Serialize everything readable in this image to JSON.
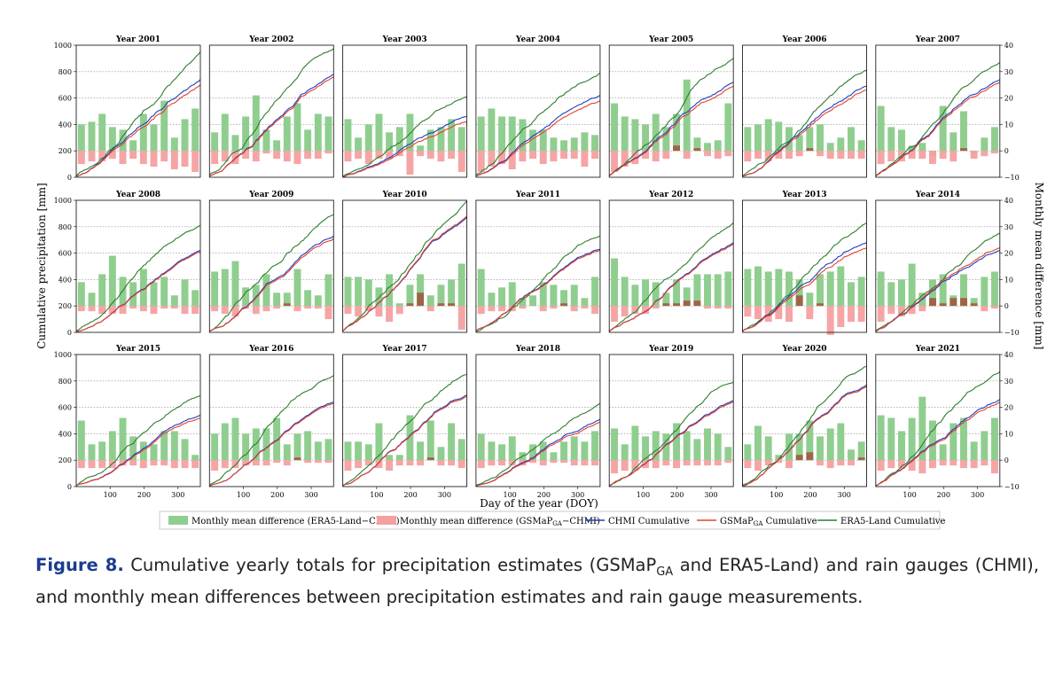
{
  "figure": {
    "label": "Figure 8.",
    "caption_parts": [
      " Cumulative yearly totals for precipitation estimates (GSMaP",
      "GA",
      " and ERA5-Land) and rain gauges (CHMI), and monthly mean differences between precipitation estimates and rain gauge measurements."
    ]
  },
  "colors": {
    "era5_bar": "#8fce8f",
    "gsmap_bar": "#f4a0a0",
    "gsmap_bar_dark": "#a0523a",
    "chmi_line": "#1f3fbf",
    "gsmap_line": "#e8402a",
    "era5_line": "#2e7d2e"
  },
  "chart_data": {
    "type": "bar+line",
    "ylabel_left": "Cumulative precipitation [mm]",
    "ylabel_right": "Monthly mean difference [mm]",
    "xlabel": "Day of the year (DOY)",
    "ylim_left": [
      0,
      1000
    ],
    "ylim_right": [
      -10,
      40
    ],
    "xlim": [
      0,
      366
    ],
    "left_ticks": [
      "0",
      "200",
      "400",
      "600",
      "800",
      "1000"
    ],
    "right_ticks": [
      "−10",
      "0",
      "10",
      "20",
      "30",
      "40"
    ],
    "x_ticks": [
      "100",
      "200",
      "300"
    ],
    "legend": [
      "Monthly mean difference (ERA5-Land−CHMI)",
      "Monthly mean difference (GSMaP",
      "GA",
      "−CHMI)",
      "CHMI Cumulative",
      "GSMaP",
      "GA",
      " Cumulative",
      "ERA5-Land Cumulative"
    ],
    "panels": [
      {
        "year": "Year 2001",
        "era5_diff": [
          10,
          11,
          14,
          9,
          8,
          4,
          14,
          10,
          19,
          5,
          12,
          16
        ],
        "gsmap_diff": [
          -5,
          -4,
          -4,
          -3,
          -5,
          -3,
          -5,
          -6,
          -4,
          -7,
          -6,
          -8
        ],
        "chmi_total": 740,
        "gsmap_total": 700,
        "era5_total": 950
      },
      {
        "year": "Year 2002",
        "era5_diff": [
          7,
          14,
          6,
          13,
          21,
          8,
          4,
          13,
          18,
          8,
          14,
          13
        ],
        "gsmap_diff": [
          -5,
          -4,
          -5,
          -3,
          -4,
          -1,
          -3,
          -4,
          -5,
          -3,
          -3,
          -1
        ],
        "chmi_total": 780,
        "gsmap_total": 760,
        "era5_total": 975
      },
      {
        "year": "Year 2003",
        "era5_diff": [
          12,
          5,
          10,
          14,
          7,
          9,
          14,
          2,
          8,
          9,
          12,
          9
        ],
        "gsmap_diff": [
          -4,
          -3,
          -5,
          -3,
          -3,
          -2,
          -9,
          -2,
          -3,
          -4,
          -3,
          -8
        ],
        "chmi_total": 460,
        "gsmap_total": 420,
        "era5_total": 610
      },
      {
        "year": "Year 2004",
        "era5_diff": [
          13,
          16,
          13,
          13,
          12,
          8,
          8,
          5,
          4,
          5,
          7,
          6
        ],
        "gsmap_diff": [
          -8,
          -6,
          -5,
          -7,
          -4,
          -3,
          -5,
          -4,
          -3,
          -3,
          -6,
          -3
        ],
        "chmi_total": 620,
        "gsmap_total": 580,
        "era5_total": 790
      },
      {
        "year": "Year 2005",
        "era5_diff": [
          18,
          13,
          12,
          10,
          14,
          9,
          14,
          27,
          5,
          3,
          4,
          18
        ],
        "gsmap_diff": [
          -8,
          -6,
          -5,
          -3,
          -4,
          -3,
          2,
          -3,
          1,
          -2,
          -3,
          -2
        ],
        "chmi_total": 720,
        "gsmap_total": 690,
        "era5_total": 900
      },
      {
        "year": "Year 2006",
        "era5_diff": [
          9,
          10,
          12,
          11,
          9,
          6,
          9,
          10,
          3,
          5,
          9,
          4
        ],
        "gsmap_diff": [
          -4,
          -3,
          -4,
          -3,
          -3,
          -2,
          1,
          -2,
          -3,
          -3,
          -3,
          -3
        ],
        "chmi_total": 690,
        "gsmap_total": 660,
        "era5_total": 810
      },
      {
        "year": "Year 2007",
        "era5_diff": [
          17,
          9,
          8,
          2,
          3,
          -2,
          17,
          7,
          15,
          -1,
          5,
          9
        ],
        "gsmap_diff": [
          -5,
          -4,
          -4,
          -3,
          -3,
          -5,
          -3,
          -4,
          1,
          -3,
          -2,
          -1
        ],
        "chmi_total": 740,
        "gsmap_total": 720,
        "era5_total": 870
      },
      {
        "year": "Year 2008",
        "era5_diff": [
          9,
          5,
          12,
          19,
          11,
          9,
          14,
          9,
          11,
          4,
          10,
          6
        ],
        "gsmap_diff": [
          -2,
          -2,
          -3,
          -3,
          -3,
          -1,
          -2,
          -3,
          -1,
          -1,
          -3,
          -3
        ],
        "chmi_total": 620,
        "gsmap_total": 610,
        "era5_total": 810
      },
      {
        "year": "Year 2009",
        "era5_diff": [
          13,
          14,
          17,
          7,
          8,
          12,
          5,
          5,
          14,
          6,
          4,
          12
        ],
        "gsmap_diff": [
          -2,
          -3,
          -4,
          -1,
          -3,
          -2,
          -1,
          1,
          -2,
          -1,
          -1,
          -5
        ],
        "chmi_total": 730,
        "gsmap_total": 710,
        "era5_total": 890
      },
      {
        "year": "Year 2010",
        "era5_diff": [
          11,
          11,
          10,
          7,
          12,
          1,
          8,
          12,
          4,
          8,
          10,
          16
        ],
        "gsmap_diff": [
          -3,
          -4,
          -2,
          -4,
          -6,
          -3,
          1,
          5,
          -2,
          1,
          1,
          -9
        ],
        "chmi_total": 870,
        "gsmap_total": 880,
        "era5_total": 995
      },
      {
        "year": "Year 2011",
        "era5_diff": [
          14,
          5,
          7,
          9,
          3,
          4,
          9,
          8,
          6,
          8,
          3,
          11
        ],
        "gsmap_diff": [
          -3,
          -2,
          -2,
          -2,
          -1,
          0,
          -2,
          -1,
          1,
          -2,
          -1,
          -3
        ],
        "chmi_total": 630,
        "gsmap_total": 620,
        "era5_total": 730
      },
      {
        "year": "Year 2012",
        "era5_diff": [
          18,
          11,
          8,
          10,
          9,
          5,
          10,
          7,
          12,
          12,
          12,
          13
        ],
        "gsmap_diff": [
          -6,
          -4,
          -3,
          -3,
          -1,
          1,
          1,
          2,
          2,
          -1,
          -1,
          -1
        ],
        "chmi_total": 680,
        "gsmap_total": 670,
        "era5_total": 830
      },
      {
        "year": "Year 2013",
        "era5_diff": [
          14,
          15,
          13,
          14,
          13,
          10,
          5,
          12,
          13,
          15,
          9,
          11
        ],
        "gsmap_diff": [
          -4,
          -5,
          -6,
          -5,
          -6,
          4,
          -5,
          1,
          -11,
          -8,
          -6,
          -6
        ],
        "chmi_total": 680,
        "gsmap_total": 640,
        "era5_total": 830
      },
      {
        "year": "Year 2014",
        "era5_diff": [
          13,
          9,
          10,
          16,
          5,
          10,
          12,
          4,
          12,
          3,
          11,
          13
        ],
        "gsmap_diff": [
          -6,
          -3,
          -4,
          -3,
          -2,
          3,
          1,
          3,
          3,
          1,
          -2,
          -1
        ],
        "chmi_total": 620,
        "gsmap_total": 640,
        "era5_total": 750
      },
      {
        "year": "Year 2015",
        "era5_diff": [
          15,
          6,
          7,
          11,
          16,
          9,
          7,
          6,
          11,
          11,
          8,
          2
        ],
        "gsmap_diff": [
          -3,
          -3,
          -3,
          -3,
          -2,
          -2,
          -3,
          -2,
          -2,
          -3,
          -3,
          -3
        ],
        "chmi_total": 540,
        "gsmap_total": 520,
        "era5_total": 690
      },
      {
        "year": "Year 2016",
        "era5_diff": [
          10,
          14,
          16,
          10,
          12,
          12,
          16,
          6,
          10,
          11,
          7,
          8
        ],
        "gsmap_diff": [
          -4,
          -3,
          -3,
          -2,
          -2,
          -2,
          -1,
          -2,
          1,
          -1,
          -1,
          -1
        ],
        "chmi_total": 640,
        "gsmap_total": 630,
        "era5_total": 840
      },
      {
        "year": "Year 2017",
        "era5_diff": [
          7,
          7,
          6,
          14,
          2,
          2,
          17,
          7,
          15,
          5,
          14,
          8
        ],
        "gsmap_diff": [
          -4,
          -3,
          -2,
          -3,
          -4,
          -2,
          -2,
          -2,
          1,
          -2,
          -2,
          -3
        ],
        "chmi_total": 690,
        "gsmap_total": 680,
        "era5_total": 850
      },
      {
        "year": "Year 2018",
        "era5_diff": [
          10,
          7,
          6,
          9,
          3,
          6,
          7,
          3,
          7,
          9,
          7,
          11
        ],
        "gsmap_diff": [
          -3,
          -2,
          -2,
          -2,
          -2,
          -1,
          -2,
          -1,
          -1,
          -2,
          -2,
          -2
        ],
        "chmi_total": 510,
        "gsmap_total": 490,
        "era5_total": 630
      },
      {
        "year": "Year 2019",
        "era5_diff": [
          12,
          6,
          13,
          9,
          11,
          10,
          14,
          11,
          8,
          12,
          10,
          5
        ],
        "gsmap_diff": [
          -5,
          -4,
          -4,
          -3,
          -3,
          -2,
          -3,
          -2,
          -2,
          -2,
          -2,
          -1
        ],
        "chmi_total": 650,
        "gsmap_total": 640,
        "era5_total": 790
      },
      {
        "year": "Year 2020",
        "era5_diff": [
          6,
          13,
          9,
          2,
          10,
          10,
          15,
          9,
          12,
          14,
          4,
          7
        ],
        "gsmap_diff": [
          -3,
          -4,
          -2,
          -1,
          -3,
          2,
          3,
          -2,
          -3,
          -2,
          -2,
          1
        ],
        "chmi_total": 770,
        "gsmap_total": 760,
        "era5_total": 910
      },
      {
        "year": "Year 2021",
        "era5_diff": [
          17,
          16,
          11,
          16,
          24,
          15,
          6,
          14,
          16,
          7,
          11,
          16
        ],
        "gsmap_diff": [
          -4,
          -3,
          -3,
          -4,
          -5,
          -3,
          -2,
          -2,
          -3,
          -3,
          -2,
          -5
        ],
        "chmi_total": 660,
        "gsmap_total": 640,
        "era5_total": 870
      }
    ]
  }
}
